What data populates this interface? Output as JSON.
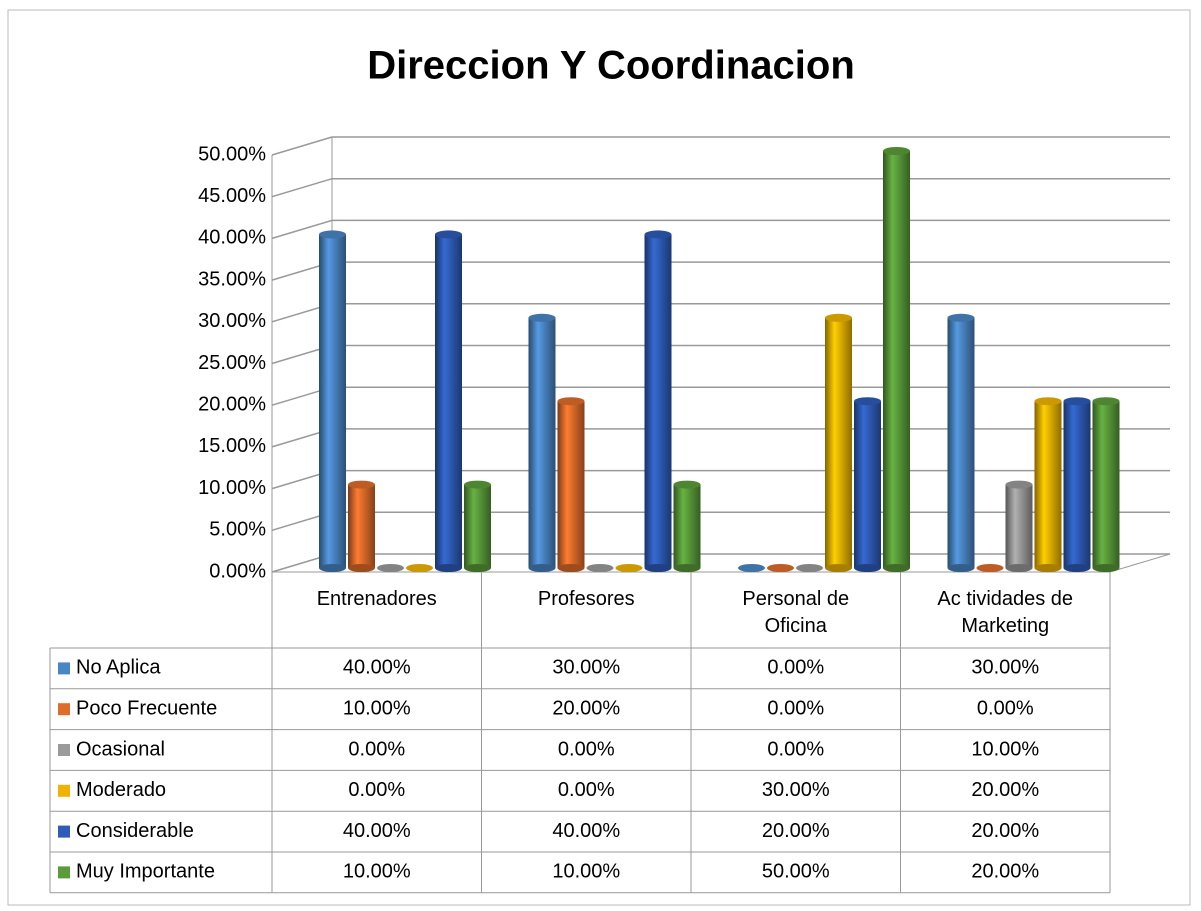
{
  "chart_data": {
    "type": "bar3d",
    "title": "Direccion Y Coordinacion",
    "categories": [
      "Entrenadores",
      "Profesores",
      "Personal de Oficina",
      "Ac tividades de Marketing"
    ],
    "series": [
      {
        "name": "No Aplica",
        "color": "#4a86c5",
        "values": [
          40,
          30,
          0,
          30
        ],
        "value_labels": [
          "40.00%",
          "30.00%",
          "0.00%",
          "30.00%"
        ]
      },
      {
        "name": "Poco Frecuente",
        "color": "#e06c2b",
        "values": [
          10,
          20,
          0,
          0
        ],
        "value_labels": [
          "10.00%",
          "20.00%",
          "0.00%",
          "0.00%"
        ]
      },
      {
        "name": "Ocasional",
        "color": "#9a9a9a",
        "values": [
          0,
          0,
          0,
          10
        ],
        "value_labels": [
          "0.00%",
          "0.00%",
          "0.00%",
          "10.00%"
        ]
      },
      {
        "name": "Moderado",
        "color": "#f0b400",
        "values": [
          0,
          0,
          30,
          20
        ],
        "value_labels": [
          "0.00%",
          "0.00%",
          "30.00%",
          "20.00%"
        ]
      },
      {
        "name": "Considerable",
        "color": "#2e5cb8",
        "values": [
          40,
          40,
          20,
          20
        ],
        "value_labels": [
          "40.00%",
          "40.00%",
          "20.00%",
          "20.00%"
        ]
      },
      {
        "name": "Muy Importante",
        "color": "#5a9c3a",
        "values": [
          10,
          10,
          50,
          20
        ],
        "value_labels": [
          "10.00%",
          "10.00%",
          "50.00%",
          "20.00%"
        ]
      }
    ],
    "ylim": [
      0,
      50
    ],
    "yticks": [
      {
        "value": 0,
        "label": "0.00%"
      },
      {
        "value": 5,
        "label": "5.00%"
      },
      {
        "value": 10,
        "label": "10.00%"
      },
      {
        "value": 15,
        "label": "15.00%"
      },
      {
        "value": 20,
        "label": "20.00%"
      },
      {
        "value": 25,
        "label": "25.00%"
      },
      {
        "value": 30,
        "label": "30.00%"
      },
      {
        "value": 35,
        "label": "35.00%"
      },
      {
        "value": 40,
        "label": "40.00%"
      },
      {
        "value": 45,
        "label": "45.00%"
      },
      {
        "value": 50,
        "label": "50.00%"
      }
    ],
    "grid": true
  }
}
